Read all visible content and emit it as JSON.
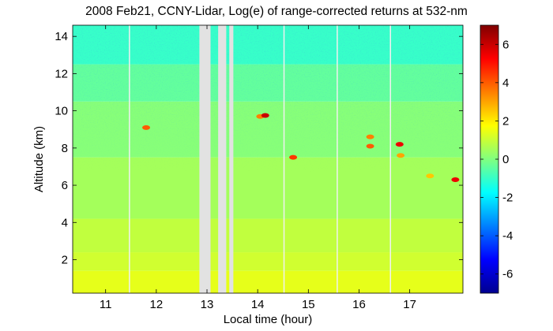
{
  "chart_data": {
    "type": "heatmap",
    "title": "2008 Feb21, CCNY-Lidar, Log(e) of range-corrected returns at 532-nm",
    "xlabel": "Local time (hour)",
    "ylabel": "Altitude (km)",
    "xlim": [
      10.35,
      18.05
    ],
    "ylim": [
      0.2,
      14.6
    ],
    "xticks": [
      11,
      12,
      13,
      14,
      15,
      16,
      17
    ],
    "yticks": [
      2,
      4,
      6,
      8,
      10,
      12,
      14
    ],
    "colorbar": {
      "range": [
        -7,
        7
      ],
      "ticks": [
        -6,
        -4,
        -2,
        0,
        2,
        4,
        6
      ],
      "colormap": "jet"
    },
    "gaps": [
      [
        12.85,
        13.07
      ],
      [
        13.22,
        13.38
      ],
      [
        13.44,
        13.52
      ]
    ],
    "separators": [
      11.47,
      14.52,
      15.57,
      16.62
    ],
    "layers": [
      {
        "altitude_from": 0.2,
        "altitude_to": 1.4,
        "value": 1.4
      },
      {
        "altitude_from": 1.4,
        "altitude_to": 2.4,
        "value": 1.1
      },
      {
        "altitude_from": 2.4,
        "altitude_to": 4.2,
        "value": 0.9
      },
      {
        "altitude_from": 4.2,
        "altitude_to": 7.5,
        "value": 0.5
      },
      {
        "altitude_from": 7.5,
        "altitude_to": 10.5,
        "value": 0.1
      },
      {
        "altitude_from": 10.5,
        "altitude_to": 12.5,
        "value": -0.4
      },
      {
        "altitude_from": 12.5,
        "altitude_to": 14.6,
        "value": -1.0
      }
    ],
    "clouds": [
      {
        "time": 14.05,
        "altitude": 9.7,
        "value": 3.5
      },
      {
        "time": 14.15,
        "altitude": 9.75,
        "value": 6.0
      },
      {
        "time": 14.7,
        "altitude": 7.5,
        "value": 4.5
      },
      {
        "time": 16.22,
        "altitude": 8.6,
        "value": 3.5
      },
      {
        "time": 16.22,
        "altitude": 8.1,
        "value": 4.0
      },
      {
        "time": 16.8,
        "altitude": 8.2,
        "value": 5.5
      },
      {
        "time": 16.82,
        "altitude": 7.6,
        "value": 3.0
      },
      {
        "time": 17.4,
        "altitude": 6.5,
        "value": 2.5
      },
      {
        "time": 17.9,
        "altitude": 6.3,
        "value": 5.5
      },
      {
        "time": 11.8,
        "altitude": 9.1,
        "value": 4.0
      }
    ]
  }
}
